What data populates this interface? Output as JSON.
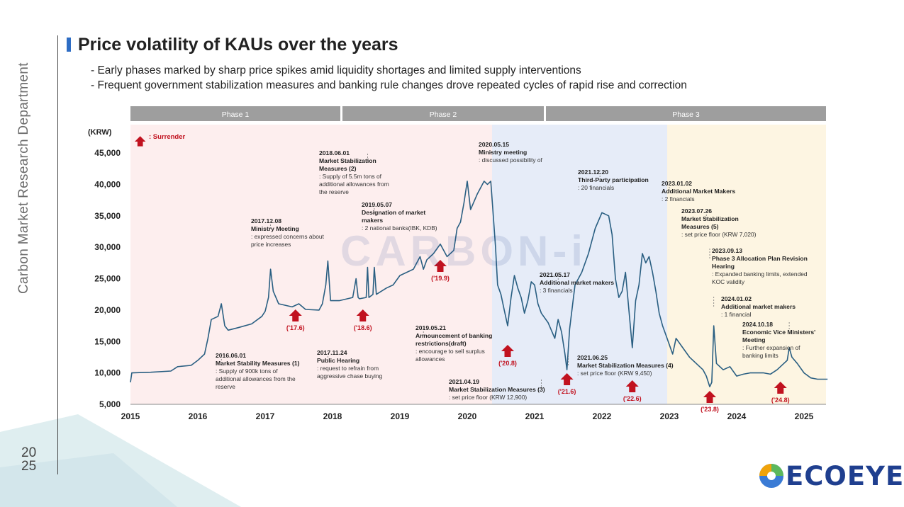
{
  "sidebar": {
    "label": "Carbon Market Research Department",
    "year_top": "20",
    "year_bottom": "25"
  },
  "header": {
    "title": "Price volatility of KAUs over the years",
    "bullet1": "-  Early phases marked by sharp price spikes amid liquidity shortages and limited supply interventions",
    "bullet2": "- Frequent government stabilization measures and banking rule changes drove repeated cycles of rapid rise and correction"
  },
  "logo": {
    "text": "ECOEYE"
  },
  "watermark": "CARBON-i",
  "colors": {
    "phase1": "#fdeeee",
    "phase2": "#e6ecf8",
    "phase3": "#fdf5e2",
    "line": "#2a5f82",
    "arrow": "#c1121f",
    "phase_bar": "#9e9e9e"
  },
  "chart_data": {
    "type": "line",
    "unit_label": "(KRW)",
    "legend": ": Surrender",
    "ylim": [
      5000,
      45000
    ],
    "yticks": [
      "5,000",
      "10,000",
      "15,000",
      "20,000",
      "25,000",
      "30,000",
      "35,000",
      "40,000",
      "45,000"
    ],
    "xlim": [
      2015,
      2025.4
    ],
    "xticks": [
      "2015",
      "2016",
      "2017",
      "2018",
      "2019",
      "2020",
      "2021",
      "2022",
      "2023",
      "2024",
      "2025"
    ],
    "phases": [
      {
        "label": "Phase 1",
        "start": 2015,
        "end": 2018.15
      },
      {
        "label": "Phase 2",
        "start": 2018.15,
        "end": 2021.0
      },
      {
        "label": "Phase 3",
        "start": 2021.0,
        "end": 2025.35
      }
    ],
    "series": [
      {
        "name": "KAU price",
        "points": [
          [
            2015.0,
            8500
          ],
          [
            2015.02,
            10000
          ],
          [
            2015.3,
            10100
          ],
          [
            2015.6,
            10300
          ],
          [
            2015.7,
            11000
          ],
          [
            2015.9,
            11200
          ],
          [
            2016.0,
            12000
          ],
          [
            2016.1,
            13000
          ],
          [
            2016.15,
            15500
          ],
          [
            2016.2,
            18500
          ],
          [
            2016.3,
            19000
          ],
          [
            2016.35,
            21000
          ],
          [
            2016.4,
            17500
          ],
          [
            2016.45,
            16800
          ],
          [
            2016.6,
            17200
          ],
          [
            2016.8,
            17800
          ],
          [
            2016.95,
            19000
          ],
          [
            2017.0,
            19800
          ],
          [
            2017.05,
            22000
          ],
          [
            2017.08,
            26500
          ],
          [
            2017.12,
            23000
          ],
          [
            2017.2,
            21000
          ],
          [
            2017.4,
            20500
          ],
          [
            2017.5,
            21000
          ],
          [
            2017.6,
            20100
          ],
          [
            2017.8,
            20000
          ],
          [
            2017.85,
            21000
          ],
          [
            2017.9,
            24000
          ],
          [
            2017.93,
            27800
          ],
          [
            2017.97,
            21500
          ],
          [
            2018.1,
            21500
          ],
          [
            2018.3,
            22000
          ],
          [
            2018.35,
            25000
          ],
          [
            2018.38,
            22000
          ],
          [
            2018.4,
            21800
          ],
          [
            2018.5,
            22000
          ],
          [
            2018.52,
            26800
          ],
          [
            2018.54,
            22000
          ],
          [
            2018.6,
            22500
          ],
          [
            2018.62,
            26800
          ],
          [
            2018.65,
            22500
          ],
          [
            2018.8,
            23500
          ],
          [
            2018.9,
            24000
          ],
          [
            2019.0,
            25500
          ],
          [
            2019.2,
            26500
          ],
          [
            2019.3,
            28500
          ],
          [
            2019.35,
            26500
          ],
          [
            2019.4,
            28000
          ],
          [
            2019.5,
            29000
          ],
          [
            2019.6,
            30500
          ],
          [
            2019.7,
            28500
          ],
          [
            2019.8,
            29500
          ],
          [
            2019.85,
            33000
          ],
          [
            2019.9,
            34000
          ],
          [
            2019.95,
            37000
          ],
          [
            2020.0,
            40500
          ],
          [
            2020.05,
            36000
          ],
          [
            2020.15,
            38500
          ],
          [
            2020.25,
            40500
          ],
          [
            2020.3,
            40000
          ],
          [
            2020.35,
            40500
          ],
          [
            2020.38,
            36000
          ],
          [
            2020.42,
            30000
          ],
          [
            2020.45,
            24000
          ],
          [
            2020.5,
            22500
          ],
          [
            2020.55,
            20000
          ],
          [
            2020.6,
            17500
          ],
          [
            2020.65,
            22000
          ],
          [
            2020.7,
            25500
          ],
          [
            2020.75,
            23500
          ],
          [
            2020.8,
            22000
          ],
          [
            2020.85,
            19500
          ],
          [
            2020.9,
            21500
          ],
          [
            2020.95,
            24500
          ],
          [
            2021.0,
            24000
          ],
          [
            2021.05,
            21000
          ],
          [
            2021.1,
            19500
          ],
          [
            2021.2,
            18000
          ],
          [
            2021.3,
            15500
          ],
          [
            2021.35,
            18500
          ],
          [
            2021.4,
            16500
          ],
          [
            2021.45,
            13000
          ],
          [
            2021.48,
            10500
          ],
          [
            2021.52,
            17000
          ],
          [
            2021.6,
            24000
          ],
          [
            2021.7,
            26000
          ],
          [
            2021.8,
            29000
          ],
          [
            2021.85,
            31000
          ],
          [
            2021.9,
            33000
          ],
          [
            2022.0,
            35500
          ],
          [
            2022.1,
            35000
          ],
          [
            2022.15,
            32000
          ],
          [
            2022.2,
            25000
          ],
          [
            2022.25,
            22000
          ],
          [
            2022.3,
            23000
          ],
          [
            2022.35,
            26000
          ],
          [
            2022.4,
            20000
          ],
          [
            2022.45,
            14000
          ],
          [
            2022.5,
            21500
          ],
          [
            2022.55,
            24000
          ],
          [
            2022.6,
            29000
          ],
          [
            2022.65,
            27500
          ],
          [
            2022.7,
            28500
          ],
          [
            2022.75,
            26000
          ],
          [
            2022.8,
            23000
          ],
          [
            2022.85,
            19500
          ],
          [
            2022.9,
            17500
          ],
          [
            2022.95,
            16000
          ],
          [
            2023.0,
            14500
          ],
          [
            2023.05,
            13000
          ],
          [
            2023.1,
            15500
          ],
          [
            2023.2,
            14000
          ],
          [
            2023.3,
            12500
          ],
          [
            2023.4,
            11500
          ],
          [
            2023.5,
            10500
          ],
          [
            2023.55,
            9500
          ],
          [
            2023.6,
            7800
          ],
          [
            2023.63,
            8500
          ],
          [
            2023.66,
            17500
          ],
          [
            2023.7,
            11500
          ],
          [
            2023.8,
            10500
          ],
          [
            2023.9,
            11000
          ],
          [
            2024.0,
            9500
          ],
          [
            2024.1,
            9800
          ],
          [
            2024.2,
            10000
          ],
          [
            2024.4,
            10000
          ],
          [
            2024.5,
            9800
          ],
          [
            2024.6,
            10500
          ],
          [
            2024.7,
            11500
          ],
          [
            2024.75,
            12000
          ],
          [
            2024.78,
            14000
          ],
          [
            2024.82,
            12500
          ],
          [
            2024.9,
            11500
          ],
          [
            2025.0,
            10000
          ],
          [
            2025.1,
            9200
          ],
          [
            2025.2,
            9000
          ],
          [
            2025.35,
            9000
          ]
        ]
      }
    ],
    "surrender_arrows": [
      {
        "x": 2017.45,
        "label": "('17.6)"
      },
      {
        "x": 2018.45,
        "label": "('18.6)"
      },
      {
        "x": 2019.6,
        "label": "('19.9)"
      },
      {
        "x": 2020.6,
        "label": "('20.8)"
      },
      {
        "x": 2021.48,
        "label": "('21.6)"
      },
      {
        "x": 2022.45,
        "label": "('22.6)"
      },
      {
        "x": 2023.6,
        "label": "('23.8)"
      },
      {
        "x": 2024.65,
        "label": "('24.8)"
      }
    ],
    "annotations": [
      {
        "date": "2016.06.01",
        "title": "Market Stability Measures (1)",
        "desc": ": Supply of 900k tons of|additional allowances from the|reserve"
      },
      {
        "date": "2017.12.08",
        "title": "Ministry Meeting",
        "desc": ": expressed concerns about|price increases"
      },
      {
        "date": "2017.11.24",
        "title": "Public Hearing",
        "desc": ": request to refrain from|aggressive chase buying"
      },
      {
        "date": "2018.06.01",
        "title": "Market Stabilization|Measures (2)",
        "desc": ": Supply of 5.5m tons of|additional allowances from|the reserve"
      },
      {
        "date": "2019.05.07",
        "title": "Designation of market|makers",
        "desc": ": 2 national banks(IBK, KDB)"
      },
      {
        "date": "2019.05.21",
        "title": "Announcement of banking|restrictions(draft)",
        "desc": ": encourage to sell surplus|allowances"
      },
      {
        "date": "2020.05.15",
        "title": "Ministry meeting",
        "desc": ": discussed possibility of"
      },
      {
        "date": "2021.04.19",
        "title": "Market Stabilization Measures (3)",
        "desc": ": set price floor (KRW 12,900)"
      },
      {
        "date": "2021.05.17",
        "title": "Additional market makers",
        "desc": ": 3 financials"
      },
      {
        "date": "2021.06.25",
        "title": "Market Stabilization Measures (4)",
        "desc": ": set price floor (KRW 9,450)"
      },
      {
        "date": "2021.12.20",
        "title": "Third-Party participation",
        "desc": ": 20 financials"
      },
      {
        "date": "2023.01.02",
        "title": "Additional Market Makers",
        "desc": ": 2 financials"
      },
      {
        "date": "2023.07.26",
        "title": "Market Stabilization|Measures (5)",
        "desc": ": set price floor (KRW 7,020)"
      },
      {
        "date": "2023.09.13",
        "title": "Phase 3 Allocation Plan Revision|Hearing",
        "desc": ": Expanded banking limits, extended|KOC validity"
      },
      {
        "date": "2024.01.02",
        "title": "Additional market makers",
        "desc": ": 1 financial"
      },
      {
        "date": "2024.10.18",
        "title": "Economic Vice Ministers'|Meeting",
        "desc": ": Further expansion of|banking limits"
      }
    ]
  }
}
